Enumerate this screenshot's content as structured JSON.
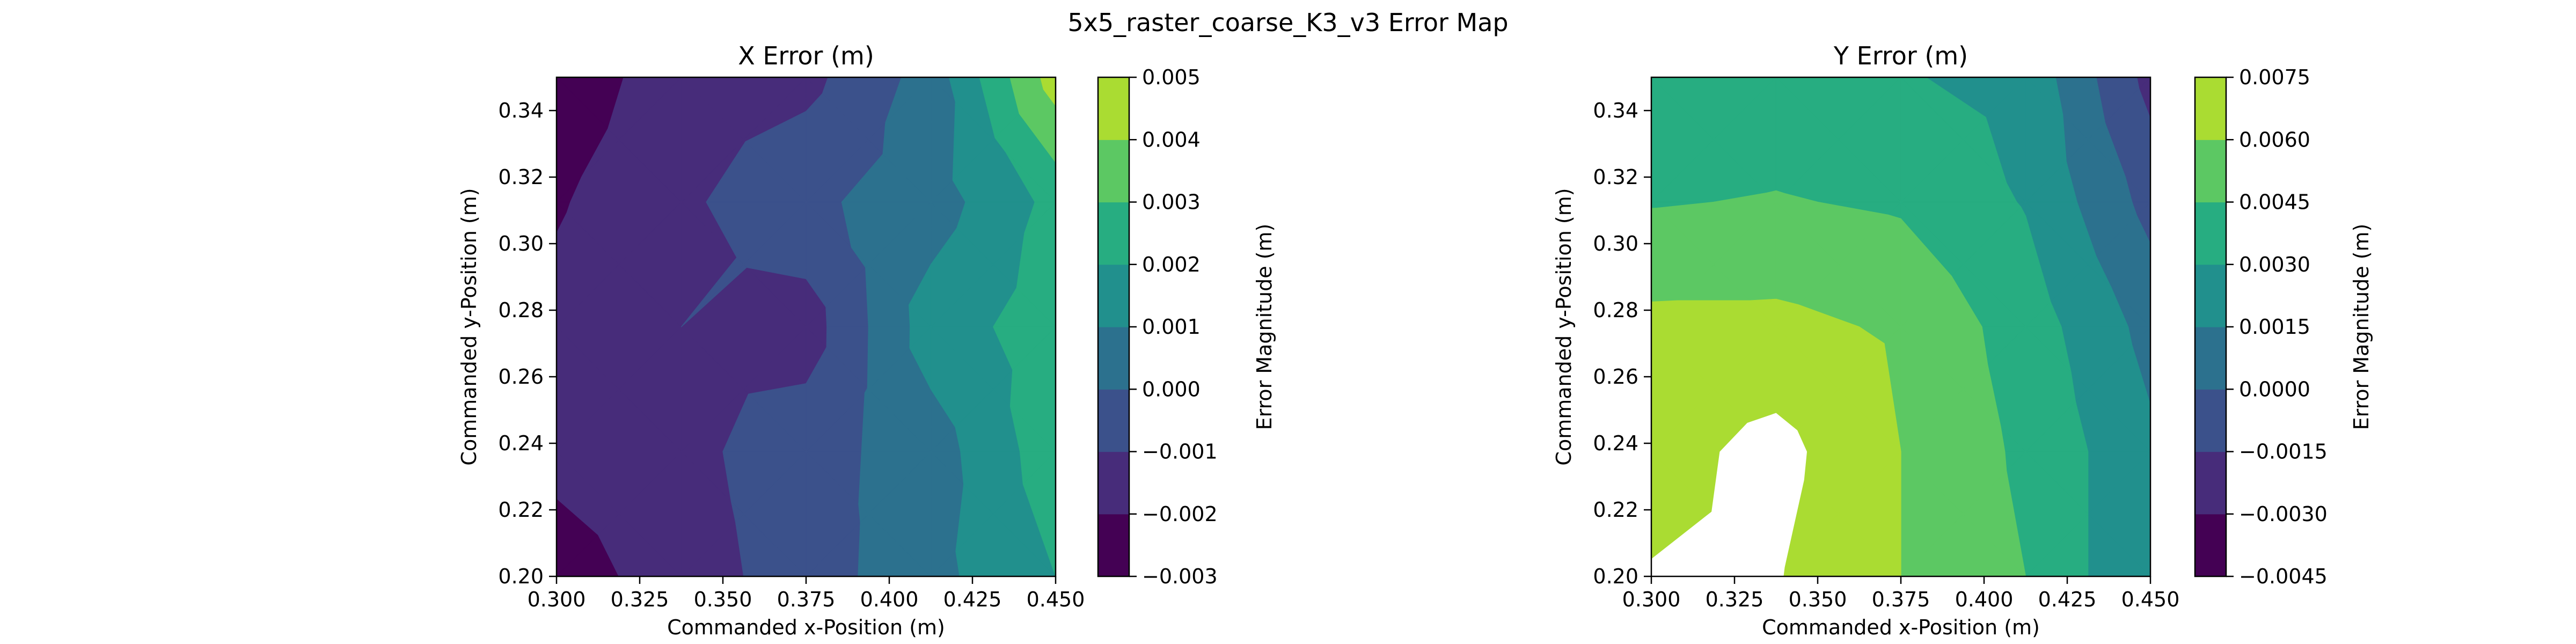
{
  "figure": {
    "suptitle": "5x5_raster_coarse_K3_v3 Error Map"
  },
  "chart_data": [
    {
      "type": "heatmap",
      "subtype": "filled-contour",
      "title": "X Error (m)",
      "xlabel": "Commanded x-Position (m)",
      "ylabel": "Commanded y-Position (m)",
      "x": [
        0.3,
        0.3375,
        0.375,
        0.4125,
        0.45
      ],
      "y": [
        0.2,
        0.2375,
        0.275,
        0.3125,
        0.35
      ],
      "xlim": [
        0.3,
        0.45
      ],
      "ylim": [
        0.2,
        0.35
      ],
      "xticks": [
        "0.300",
        "0.325",
        "0.350",
        "0.375",
        "0.400",
        "0.425",
        "0.450"
      ],
      "yticks": [
        "0.20",
        "0.22",
        "0.24",
        "0.26",
        "0.28",
        "0.30",
        "0.32",
        "0.34"
      ],
      "z": [
        [
          -0.0025,
          -0.0015,
          -0.0005,
          0.0007,
          0.002
        ],
        [
          -0.0017,
          -0.0013,
          -0.0004,
          0.0005,
          0.0026
        ],
        [
          -0.0017,
          -0.001,
          -0.0015,
          0.0015,
          0.0025
        ],
        [
          -0.0021,
          -0.0012,
          -0.0002,
          0.0005,
          0.0023
        ],
        [
          -0.0027,
          -0.0014,
          -0.0013,
          0.0004,
          0.0045
        ]
      ],
      "levels": [
        -0.003,
        -0.002,
        -0.001,
        0.0,
        0.001,
        0.002,
        0.003,
        0.004,
        0.005
      ],
      "colormap": "viridis",
      "colorbar": {
        "label": "Error Magnitude (m)",
        "ticks": [
          "−0.003",
          "−0.002",
          "−0.001",
          "0.000",
          "0.001",
          "0.002",
          "0.003",
          "0.004",
          "0.005"
        ]
      }
    },
    {
      "type": "heatmap",
      "subtype": "filled-contour",
      "title": "Y Error (m)",
      "xlabel": "Commanded x-Position (m)",
      "ylabel": "Commanded y-Position (m)",
      "x": [
        0.3,
        0.3375,
        0.375,
        0.4125,
        0.45
      ],
      "y": [
        0.2,
        0.2375,
        0.275,
        0.3125,
        0.35
      ],
      "xlim": [
        0.3,
        0.45
      ],
      "ylim": [
        0.2,
        0.35
      ],
      "xticks": [
        "0.300",
        "0.325",
        "0.350",
        "0.375",
        "0.400",
        "0.425",
        "0.450"
      ],
      "yticks": [
        "0.20",
        "0.22",
        "0.24",
        "0.26",
        "0.28",
        "0.30",
        "0.32",
        "0.34"
      ],
      "z": [
        [
          0.0076,
          0.0076,
          0.006,
          0.0045,
          0.0015
        ],
        [
          0.0069,
          0.008,
          0.006,
          0.0042,
          0.0018
        ],
        [
          0.0064,
          0.0064,
          0.0058,
          0.0038,
          0.001
        ],
        [
          0.0044,
          0.0046,
          0.0043,
          0.0029,
          -0.0005
        ],
        [
          0.0032,
          0.0035,
          0.0031,
          0.0026,
          -0.002
        ]
      ],
      "levels": [
        -0.0045,
        -0.003,
        -0.0015,
        0.0,
        0.0015,
        0.003,
        0.0045,
        0.006,
        0.0075
      ],
      "colormap": "viridis",
      "colorbar": {
        "label": "Error Magnitude (m)",
        "ticks": [
          "−0.0045",
          "−0.0030",
          "−0.0015",
          "0.0000",
          "0.0015",
          "0.0030",
          "0.0045",
          "0.0060",
          "0.0075"
        ]
      }
    }
  ],
  "colors": {
    "viridis_bands": [
      "#440154",
      "#472c7a",
      "#3b518b",
      "#2c718e",
      "#21908d",
      "#27ad81",
      "#5cc863",
      "#aadc32",
      "#fde725"
    ]
  }
}
